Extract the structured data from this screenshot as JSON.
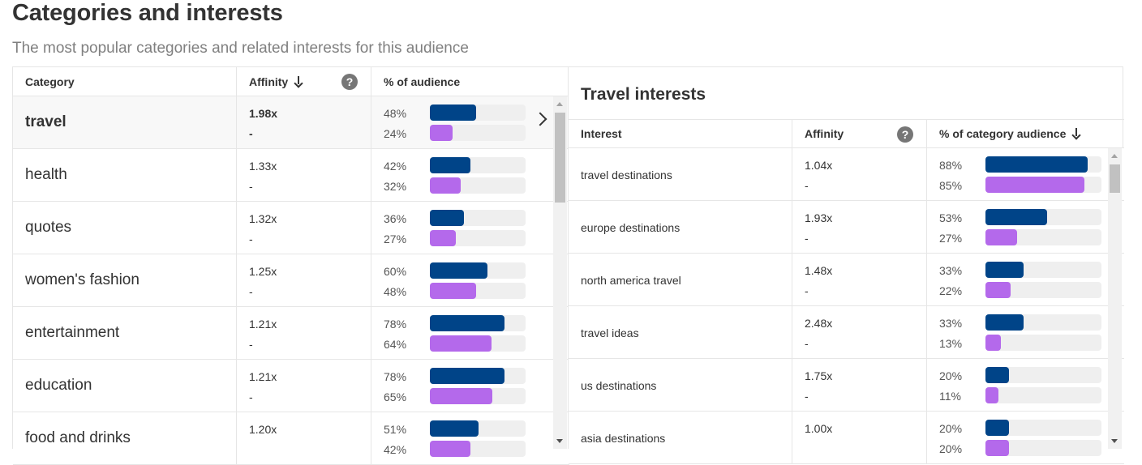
{
  "header": {
    "title": "Categories and interests",
    "subtitle": "The most popular categories and related interests for this audience"
  },
  "categories_table": {
    "columns": {
      "category": "Category",
      "affinity": "Affinity",
      "audience": "% of audience"
    },
    "rows": [
      {
        "name": "travel",
        "affinity": "1.98x",
        "affinity2": "-",
        "pct1": "48%",
        "pct2": "24%",
        "v1": 48,
        "v2": 24,
        "selected": true
      },
      {
        "name": "health",
        "affinity": "1.33x",
        "affinity2": "-",
        "pct1": "42%",
        "pct2": "32%",
        "v1": 42,
        "v2": 32
      },
      {
        "name": "quotes",
        "affinity": "1.32x",
        "affinity2": "-",
        "pct1": "36%",
        "pct2": "27%",
        "v1": 36,
        "v2": 27
      },
      {
        "name": "women's fashion",
        "affinity": "1.25x",
        "affinity2": "-",
        "pct1": "60%",
        "pct2": "48%",
        "v1": 60,
        "v2": 48
      },
      {
        "name": "entertainment",
        "affinity": "1.21x",
        "affinity2": "-",
        "pct1": "78%",
        "pct2": "64%",
        "v1": 78,
        "v2": 64
      },
      {
        "name": "education",
        "affinity": "1.21x",
        "affinity2": "-",
        "pct1": "78%",
        "pct2": "65%",
        "v1": 78,
        "v2": 65
      },
      {
        "name": "food and drinks",
        "affinity": "1.20x",
        "affinity2": "",
        "pct1": "51%",
        "pct2": "42%",
        "v1": 51,
        "v2": 42
      }
    ]
  },
  "interests_table": {
    "title": "Travel interests",
    "columns": {
      "interest": "Interest",
      "affinity": "Affinity",
      "audience": "% of category audience"
    },
    "rows": [
      {
        "name": "travel destinations",
        "affinity": "1.04x",
        "affinity2": "-",
        "pct1": "88%",
        "pct2": "85%",
        "v1": 88,
        "v2": 85
      },
      {
        "name": "europe destinations",
        "affinity": "1.93x",
        "affinity2": "-",
        "pct1": "53%",
        "pct2": "27%",
        "v1": 53,
        "v2": 27
      },
      {
        "name": "north america travel",
        "affinity": "1.48x",
        "affinity2": "-",
        "pct1": "33%",
        "pct2": "22%",
        "v1": 33,
        "v2": 22
      },
      {
        "name": "travel ideas",
        "affinity": "2.48x",
        "affinity2": "-",
        "pct1": "33%",
        "pct2": "13%",
        "v1": 33,
        "v2": 13
      },
      {
        "name": "us destinations",
        "affinity": "1.75x",
        "affinity2": "-",
        "pct1": "20%",
        "pct2": "11%",
        "v1": 20,
        "v2": 11
      },
      {
        "name": "asia destinations",
        "affinity": "1.00x",
        "affinity2": "",
        "pct1": "20%",
        "pct2": "20%",
        "v1": 20,
        "v2": 20
      }
    ]
  },
  "icons": {
    "sort": "arrow-down-icon",
    "help": "question-icon",
    "expand": "chevron-right-icon",
    "help_glyph": "?"
  },
  "colors": {
    "primary_bar": "#004488",
    "secondary_bar": "#b469eb",
    "track": "#efefef"
  }
}
